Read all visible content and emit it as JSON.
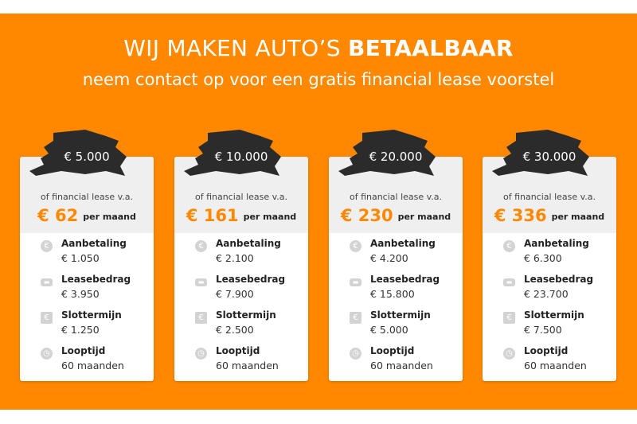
{
  "header": {
    "title_regular": "WIJ MAKEN AUTO’S",
    "title_bold": "BETAALBAAR",
    "subtitle": "neem contact op voor een gratis financial lease voorstel"
  },
  "colors": {
    "accent": "#ff8800",
    "brush": "#2b2b2b"
  },
  "labels": {
    "lease_from": "of financial lease v.a.",
    "per_month": "per maand",
    "down": "Aanbetaling",
    "lease": "Leasebedrag",
    "final": "Slottermijn",
    "term": "Looptijd"
  },
  "icons": {
    "down": "euro-coin-icon",
    "lease": "car-icon",
    "final": "euro-document-icon",
    "term": "stopwatch-icon"
  },
  "cards": [
    {
      "price": "€ 5.000",
      "monthly": "€ 62",
      "down": "€ 1.050",
      "lease": "€ 3.950",
      "final": "€ 1.250",
      "term": "60 maanden"
    },
    {
      "price": "€ 10.000",
      "monthly": "€ 161",
      "down": "€ 2.100",
      "lease": "€ 7.900",
      "final": "€ 2.500",
      "term": "60 maanden"
    },
    {
      "price": "€ 20.000",
      "monthly": "€ 230",
      "down": "€ 4.200",
      "lease": "€ 15.800",
      "final": "€ 5.000",
      "term": "60 maanden"
    },
    {
      "price": "€ 30.000",
      "monthly": "€ 336",
      "down": "€ 6.300",
      "lease": "€ 23.700",
      "final": "€ 7.500",
      "term": "60 maanden"
    }
  ]
}
